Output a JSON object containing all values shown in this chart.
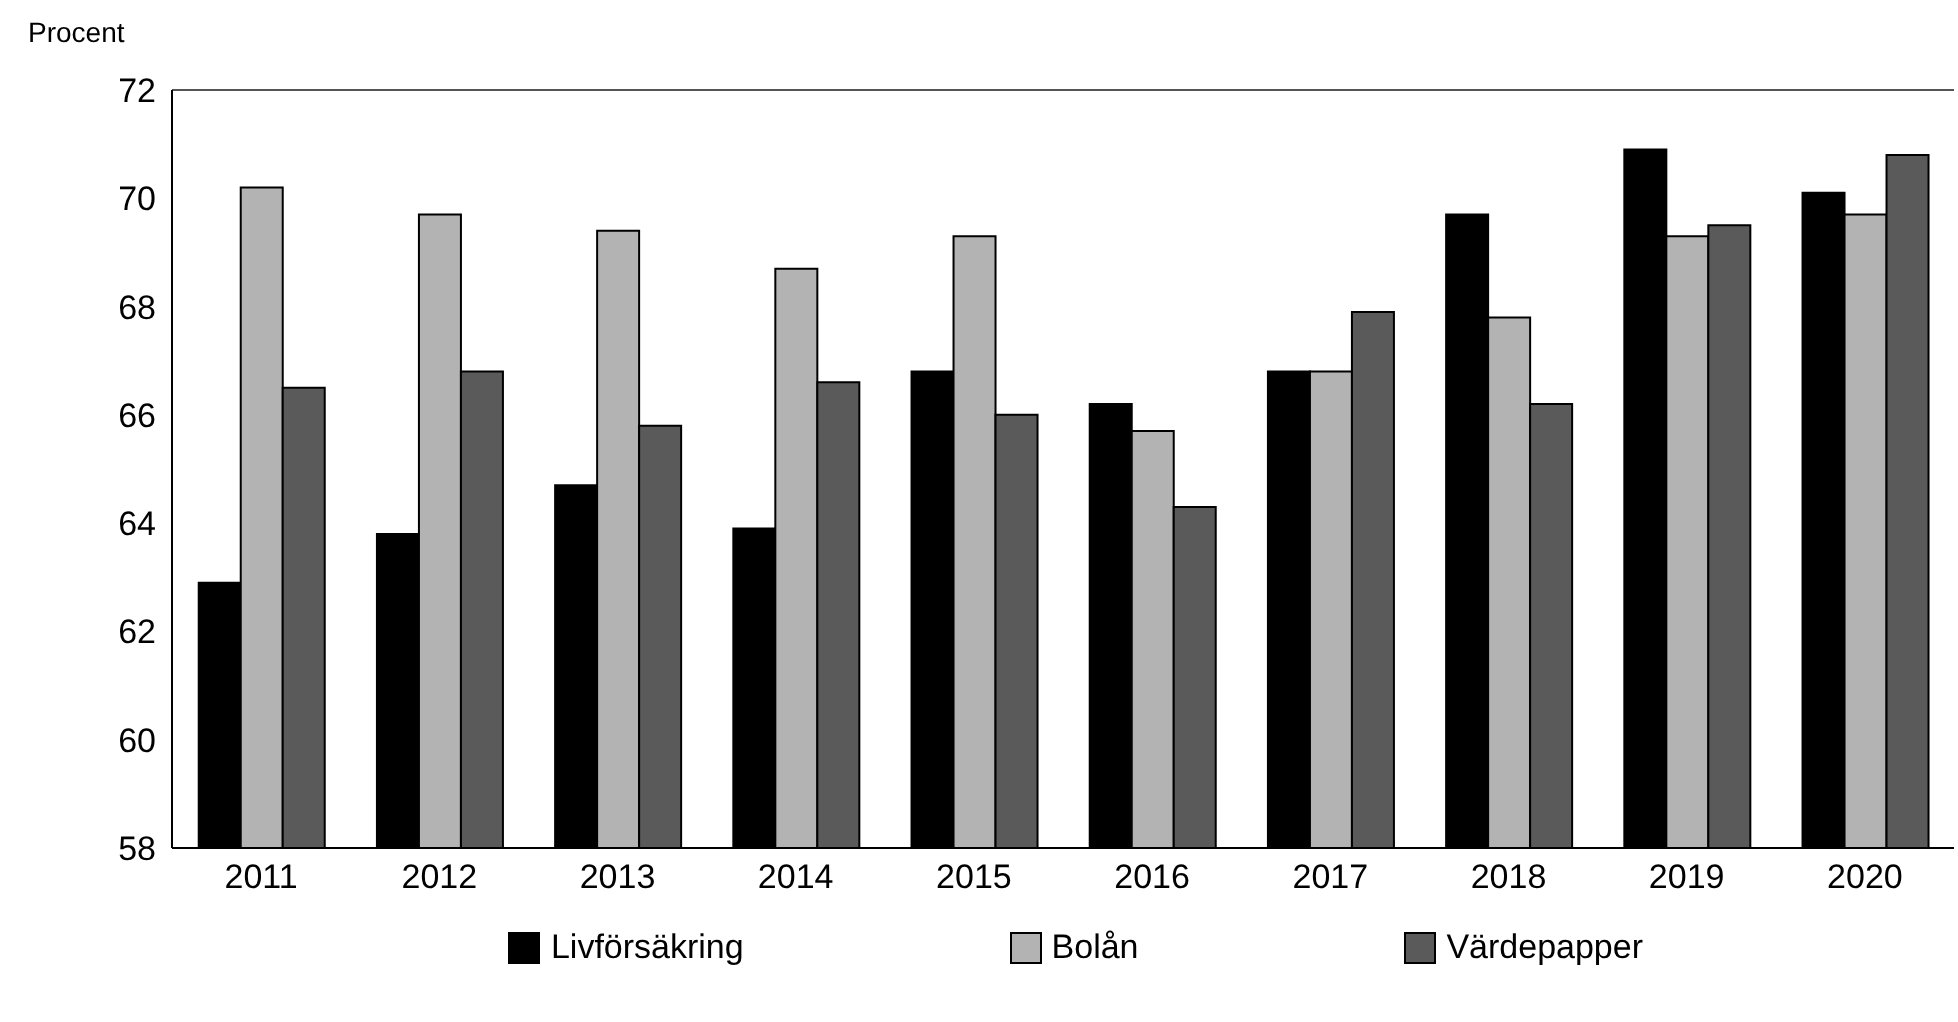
{
  "chart_data": {
    "type": "bar",
    "ylabel": "Procent",
    "categories": [
      "2011",
      "2012",
      "2013",
      "2014",
      "2015",
      "2016",
      "2017",
      "2018",
      "2019",
      "2020"
    ],
    "series": [
      {
        "name": "Livförsäkring",
        "color": "#000000",
        "values": [
          62.9,
          63.8,
          64.7,
          63.9,
          66.8,
          66.2,
          66.8,
          69.7,
          70.9,
          70.1
        ]
      },
      {
        "name": "Bolån",
        "color": "#b3b3b3",
        "values": [
          70.2,
          69.7,
          69.4,
          68.7,
          69.3,
          65.7,
          66.8,
          67.8,
          69.3,
          69.7
        ]
      },
      {
        "name": "Värdepapper",
        "color": "#5a5a5a",
        "values": [
          66.5,
          66.8,
          65.8,
          66.6,
          66.0,
          64.3,
          67.9,
          66.2,
          69.5,
          70.8
        ]
      }
    ],
    "ylim": [
      58,
      72
    ],
    "yticks": [
      58,
      60,
      62,
      64,
      66,
      68,
      70,
      72
    ],
    "legend": "bottom"
  }
}
